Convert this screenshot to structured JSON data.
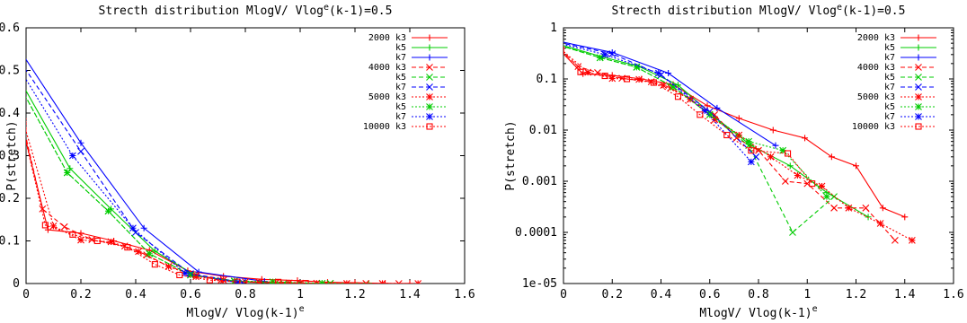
{
  "chart_data": [
    {
      "type": "line",
      "title": {
        "prefix": "Strecth distribution MlogV/ Vlog",
        "sup": "e",
        "suffix": "(k-1)=0.5"
      },
      "xlabel": {
        "prefix": "MlogV/ Vlog(k-1)",
        "sup": "e"
      },
      "ylabel": "P(stretch)",
      "xlim": [
        0,
        1.6
      ],
      "ylim": [
        0,
        0.6
      ],
      "yscale": "linear",
      "xticks": [
        "0",
        "0.2",
        "0.4",
        "0.6",
        "0.8",
        "1",
        "1.2",
        "1.4",
        "1.6"
      ],
      "xtick_values": [
        0,
        0.2,
        0.4,
        0.6,
        0.8,
        1.0,
        1.2,
        1.4,
        1.6
      ],
      "yticks": [
        "0",
        "0.1",
        "0.2",
        "0.3",
        "0.4",
        "0.5",
        "0.6"
      ],
      "ytick_values": [
        0,
        0.1,
        0.2,
        0.3,
        0.4,
        0.5,
        0.6
      ],
      "grid": false,
      "legend_position": "top-right",
      "series": [
        {
          "name": "2000 k3",
          "color": "#ff0000",
          "dash": "solid",
          "marker": "plus",
          "x": [
            -0.02,
            0.08,
            0.2,
            0.32,
            0.45,
            0.59,
            0.72,
            0.86,
            0.99,
            1.1,
            1.2,
            1.31,
            1.4
          ],
          "y": [
            0.385,
            0.126,
            0.118,
            0.1,
            0.078,
            0.03,
            0.017,
            0.01,
            0.007,
            0.003,
            0.002,
            0.0003,
            0.0002
          ]
        },
        {
          "name": "k5",
          "color": "#00cc00",
          "dash": "solid",
          "marker": "plus",
          "x": [
            -0.02,
            0.16,
            0.31,
            0.47,
            0.62,
            0.77,
            0.93,
            1.08,
            1.25
          ],
          "y": [
            0.475,
            0.27,
            0.175,
            0.076,
            0.018,
            0.005,
            0.002,
            0.0006,
            0.0002
          ]
        },
        {
          "name": "k7",
          "color": "#0000ff",
          "dash": "solid",
          "marker": "plus",
          "x": [
            -0.02,
            0.2,
            0.43,
            0.63,
            0.87
          ],
          "y": [
            0.545,
            0.33,
            0.13,
            0.027,
            0.005
          ]
        },
        {
          "name": "4000 k3",
          "color": "#ff0000",
          "dash": "dashed",
          "marker": "x",
          "x": [
            -0.01,
            0.06,
            0.14,
            0.24,
            0.36,
            0.44,
            0.52,
            0.62,
            0.71,
            0.8,
            0.91,
            1.0,
            1.11,
            1.24,
            1.36
          ],
          "y": [
            0.37,
            0.175,
            0.133,
            0.103,
            0.088,
            0.067,
            0.04,
            0.02,
            0.007,
            0.004,
            0.001,
            0.0009,
            0.0003,
            0.0003,
            7e-05
          ]
        },
        {
          "name": "k5",
          "color": "#00cc00",
          "dash": "dashed",
          "marker": "x",
          "x": [
            -0.02,
            0.15,
            0.3,
            0.45,
            0.6,
            0.76,
            0.94,
            1.11
          ],
          "y": [
            0.46,
            0.26,
            0.17,
            0.07,
            0.02,
            0.005,
            0.0001,
            0.0005
          ]
        },
        {
          "name": "k7",
          "color": "#0000ff",
          "dash": "dashed",
          "marker": "x",
          "x": [
            -0.02,
            0.2,
            0.4,
            0.6,
            0.79
          ],
          "y": [
            0.52,
            0.31,
            0.12,
            0.023,
            0.003
          ]
        },
        {
          "name": "5000 k3",
          "color": "#ff0000",
          "dash": "dotted",
          "marker": "star",
          "x": [
            -0.01,
            0.1,
            0.2,
            0.31,
            0.41,
            0.52,
            0.62,
            0.72,
            0.85,
            0.96,
            1.06,
            1.17,
            1.3,
            1.43
          ],
          "y": [
            0.38,
            0.135,
            0.102,
            0.098,
            0.075,
            0.04,
            0.016,
            0.008,
            0.003,
            0.0013,
            0.0008,
            0.0003,
            0.00015,
            7e-05
          ]
        },
        {
          "name": "k5",
          "color": "#00cc00",
          "dash": "dotted",
          "marker": "star",
          "x": [
            -0.02,
            0.15,
            0.3,
            0.45,
            0.6,
            0.76,
            0.9,
            1.08
          ],
          "y": [
            0.46,
            0.26,
            0.17,
            0.07,
            0.02,
            0.006,
            0.004,
            0.0005
          ]
        },
        {
          "name": "k7",
          "color": "#0000ff",
          "dash": "dotted",
          "marker": "star",
          "x": [
            -0.02,
            0.17,
            0.39,
            0.58,
            0.77
          ],
          "y": [
            0.5,
            0.3,
            0.13,
            0.024,
            0.0024
          ]
        },
        {
          "name": "10000 k3",
          "color": "#ff0000",
          "dash": "dotted",
          "marker": "square",
          "x": [
            -0.01,
            0.07,
            0.17,
            0.26,
            0.37,
            0.47,
            0.56,
            0.67,
            0.77,
            0.92,
            1.02
          ],
          "y": [
            0.36,
            0.137,
            0.115,
            0.1,
            0.085,
            0.045,
            0.02,
            0.008,
            0.004,
            0.0035,
            0.0009
          ]
        }
      ]
    },
    {
      "type": "line",
      "title": {
        "prefix": "Strecth distribution MlogV/ Vlog",
        "sup": "e",
        "suffix": "(k-1)=0.5"
      },
      "xlabel": {
        "prefix": "MlogV/ Vlog(k-1)",
        "sup": "e"
      },
      "ylabel": "P(stretch)",
      "xlim": [
        0,
        1.6
      ],
      "ylim": [
        1e-05,
        1
      ],
      "yscale": "log",
      "xticks": [
        "0",
        "0.2",
        "0.4",
        "0.6",
        "0.8",
        "1",
        "1.2",
        "1.4",
        "1.6"
      ],
      "xtick_values": [
        0,
        0.2,
        0.4,
        0.6,
        0.8,
        1.0,
        1.2,
        1.4,
        1.6
      ],
      "yticks": [
        "1",
        "0.1",
        "0.01",
        "0.001",
        "0.0001",
        "1e-05"
      ],
      "ytick_values": [
        1,
        0.1,
        0.01,
        0.001,
        0.0001,
        1e-05
      ],
      "grid": false,
      "legend_position": "top-right",
      "series_ref": "same as chart 0"
    }
  ]
}
